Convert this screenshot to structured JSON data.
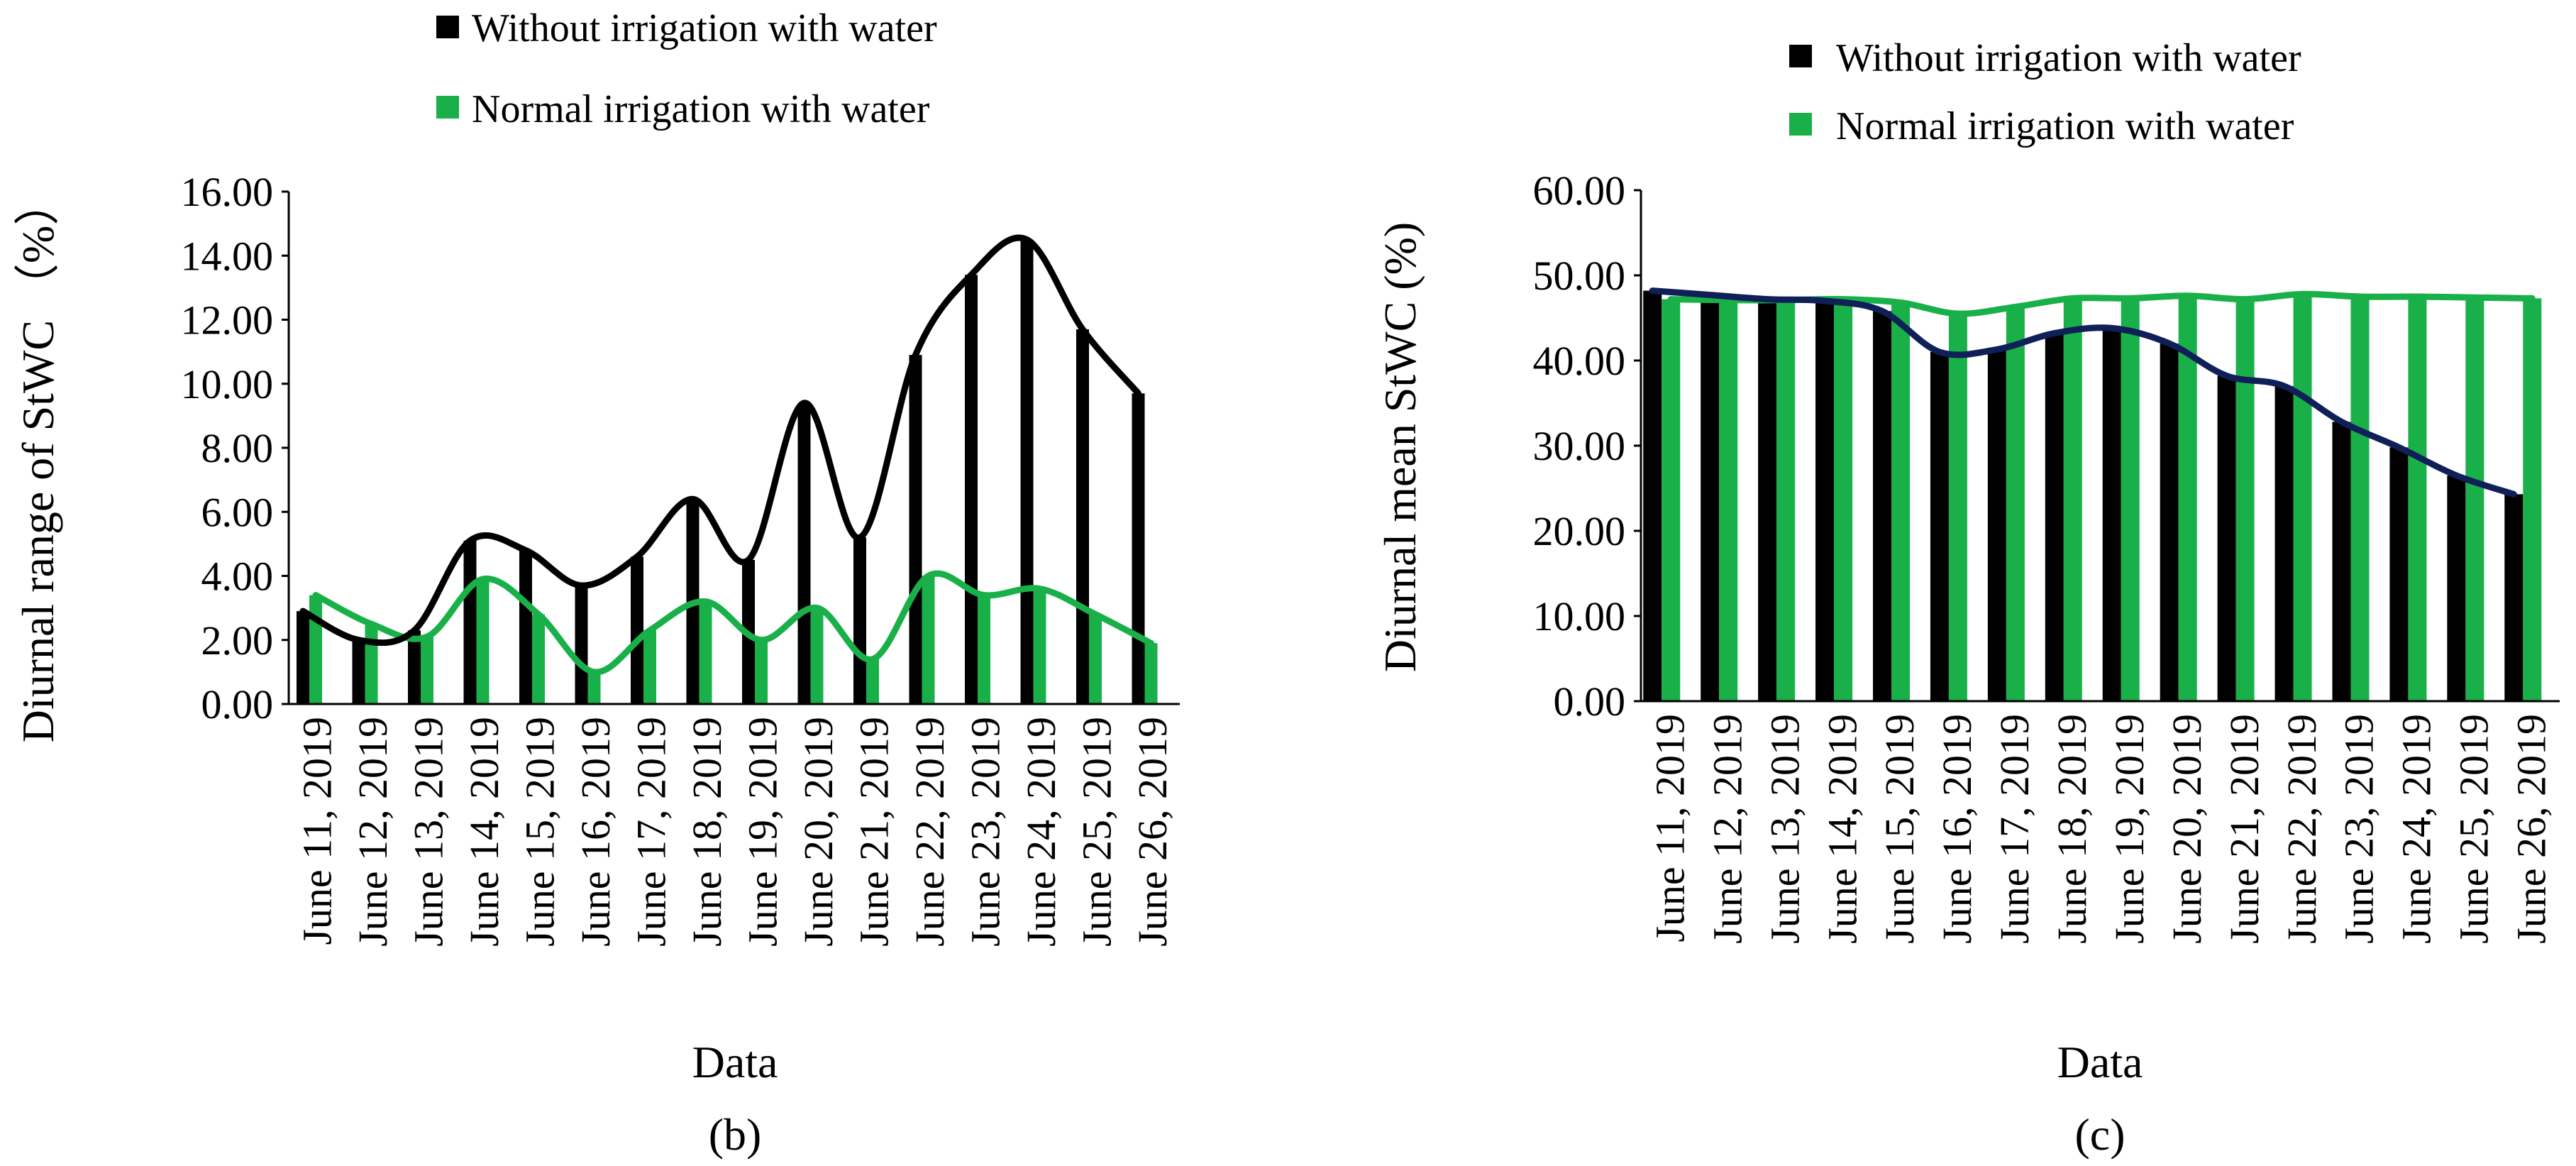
{
  "colors": {
    "without_bar": "#000000",
    "normal_bar": "#19b04a",
    "without_line_b": "#000000",
    "normal_line_b": "#19b04a",
    "without_line_c": "#0f1f57",
    "normal_line_c": "#19b04a"
  },
  "chart_data": [
    {
      "type": "bar",
      "panel_label": "(b)",
      "title": "",
      "xlabel": "Data",
      "ylabel": "Diurnal range of StWC （%）",
      "ylim": [
        0,
        16
      ],
      "yticks": [
        "0.00",
        "2.00",
        "4.00",
        "6.00",
        "8.00",
        "10.00",
        "12.00",
        "14.00",
        "16.00"
      ],
      "categories": [
        "June 11, 2019",
        "June 12, 2019",
        "June 13, 2019",
        "June 14, 2019",
        "June 15, 2019",
        "June 16, 2019",
        "June 17, 2019",
        "June 18, 2019",
        "June 19, 2019",
        "June 20, 2019",
        "June 21, 2019",
        "June 22, 2019",
        "June 23, 2019",
        "June 24, 2019",
        "June 25, 2019",
        "June 26, 2019"
      ],
      "legend": [
        "Without irrigation with water",
        "Normal irrigation with water"
      ],
      "legend_position": "top",
      "series": [
        {
          "name": "Without irrigation with water",
          "values": [
            2.9,
            2.0,
            2.3,
            5.1,
            4.8,
            3.7,
            4.6,
            6.4,
            4.5,
            9.4,
            5.2,
            10.9,
            13.4,
            14.5,
            11.7,
            9.7
          ]
        },
        {
          "name": "Normal irrigation with water",
          "values": [
            3.4,
            2.5,
            2.1,
            3.9,
            2.8,
            1.0,
            2.3,
            3.2,
            2.0,
            3.0,
            1.4,
            4.0,
            3.4,
            3.6,
            2.8,
            1.9
          ]
        }
      ]
    },
    {
      "type": "bar",
      "panel_label": "(c)",
      "title": "",
      "xlabel": "Data",
      "ylabel": "Diurnal mean StWC (%)",
      "ylim": [
        0,
        60
      ],
      "yticks": [
        "0.00",
        "10.00",
        "20.00",
        "30.00",
        "40.00",
        "50.00",
        "60.00"
      ],
      "categories": [
        "June 11, 2019",
        "June 12, 2019",
        "June 13, 2019",
        "June 14, 2019",
        "June 15, 2019",
        "June 16, 2019",
        "June 17, 2019",
        "June 18, 2019",
        "June 19, 2019",
        "June 20, 2019",
        "June 21, 2019",
        "June 22, 2019",
        "June 23, 2019",
        "June 24, 2019",
        "June 25, 2019",
        "June 26, 2019"
      ],
      "legend": [
        "Without irrigation with water",
        "Normal irrigation with water"
      ],
      "legend_position": "top",
      "series": [
        {
          "name": "Without irrigation with water",
          "values": [
            48.2,
            47.7,
            47.2,
            47.0,
            45.8,
            41.0,
            41.3,
            43.2,
            43.8,
            42.0,
            38.2,
            37.0,
            32.8,
            29.8,
            26.5,
            24.3
          ]
        },
        {
          "name": "Normal irrigation with water",
          "values": [
            47.2,
            47.1,
            47.1,
            47.2,
            46.8,
            45.5,
            46.3,
            47.3,
            47.3,
            47.6,
            47.2,
            47.8,
            47.5,
            47.5,
            47.4,
            47.3
          ]
        }
      ]
    }
  ]
}
